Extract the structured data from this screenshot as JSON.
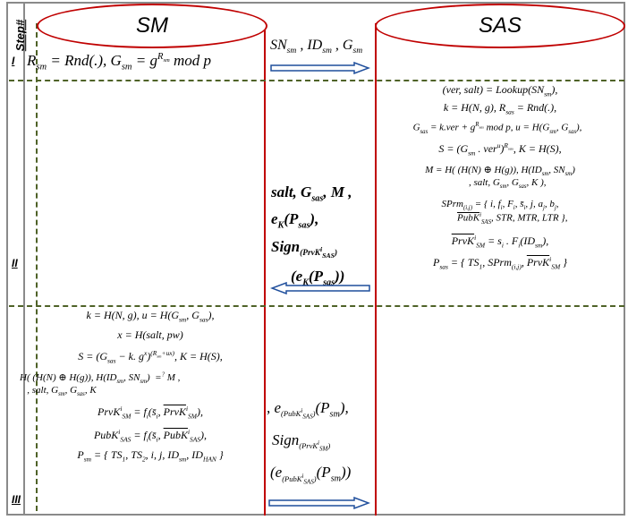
{
  "header": {
    "step_label": "Step#",
    "sm_title": "SM",
    "sas_title": "SAS"
  },
  "steps": [
    "I",
    "II",
    "III"
  ],
  "step1": {
    "sm_equation": "R_sm = Rnd(.), G_sm = g^R_sm mod p",
    "message": "SN_sm , ID_sm , G_sm"
  },
  "step2": {
    "sas_lines": [
      "(ver, salt) = Lookup(SN_sm),",
      "k = H(N, g), R_sas = Rnd(.),",
      "G_sas = k.ver + g^R_sas mod p, u = H(G_sm, G_sas),",
      "S = (G_sm . ver^u)^R_sas , K = H(S),",
      "M = H( (H(N) ⊕ H(g)), H(ID_sm, SN_sm) , salt, G_sm, G_sas, K ),",
      "SPrm_(i,j) = { i, f_i, F_i, s̄_i, j, a_j, b_j, PubK_SAS^i, STR, MTR, LTR },",
      "PrvK_SM^i = s_i . F_i(ID_sm),",
      "P_sas = { TS_1, SPrm_(i,j), PrvK_SM^i }"
    ],
    "message_lines": [
      "salt, G_sas, M,",
      "e_K(P_sas),",
      "Sign_(PrvK_SAS^i)",
      "(e_K(P_sas))"
    ]
  },
  "step3": {
    "sm_lines": [
      "k = H(N, g), u = H(G_sm, G_sas),",
      "x = H(salt, pw)",
      "S = (G_sas − k.g^x)^(R_sm+ux), K = H(S),",
      "H( (H(N) ⊕ H(g)), H(ID_sm, SN_sm) , salt, G_sm, G_sas, K ) =? M,",
      "PrvK_SM^i = f_i(s̄_i, PrvK_SM^i),",
      "PubK_SAS^i = f_i(s̄_i, PubK_SAS^i),",
      "P_sm = { TS_1, TS_2, i, j, ID_sm, ID_HAN }"
    ],
    "message_lines": [
      "e_(PubK_SAS^i)(P_sm),",
      "Sign_(PrvK_SM^i)",
      "(e_(PubK_SAS^i)(P_sm))"
    ]
  },
  "colors": {
    "lifeline": "#c00000",
    "divider": "#4f6228",
    "arrow_fill": "#ffffff",
    "arrow_stroke": "#1f4e9c",
    "frame": "#8a8a8a"
  }
}
